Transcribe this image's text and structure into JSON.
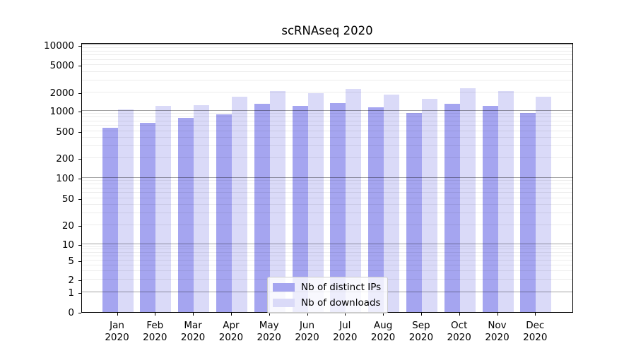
{
  "chart_data": {
    "type": "bar",
    "title": "scRNAseq 2020",
    "categories": [
      "Jan 2020",
      "Feb 2020",
      "Mar 2020",
      "Apr 2020",
      "May 2020",
      "Jun 2020",
      "Jul 2020",
      "Aug 2020",
      "Sep 2020",
      "Oct 2020",
      "Nov 2020",
      "Dec 2020"
    ],
    "series": [
      {
        "name": "Nb of distinct IPs",
        "color": "#a5a5f0",
        "values": [
          560,
          670,
          790,
          880,
          1310,
          1200,
          1330,
          1150,
          940,
          1310,
          1200,
          940
        ]
      },
      {
        "name": "Nb of downloads",
        "color": "#dadaf8",
        "values": [
          1050,
          1215,
          1250,
          1700,
          2120,
          1950,
          2230,
          1830,
          1590,
          2290,
          2110,
          1700
        ]
      }
    ],
    "xlabel": "",
    "ylabel": "",
    "yscale": "symlog",
    "ylim": [
      0,
      11000
    ],
    "y_ticks": [
      0,
      1,
      2,
      5,
      10,
      20,
      50,
      100,
      200,
      500,
      1000,
      2000,
      5000,
      10000
    ],
    "grid": "both, drawn over bars",
    "legend_position": "lower center"
  }
}
